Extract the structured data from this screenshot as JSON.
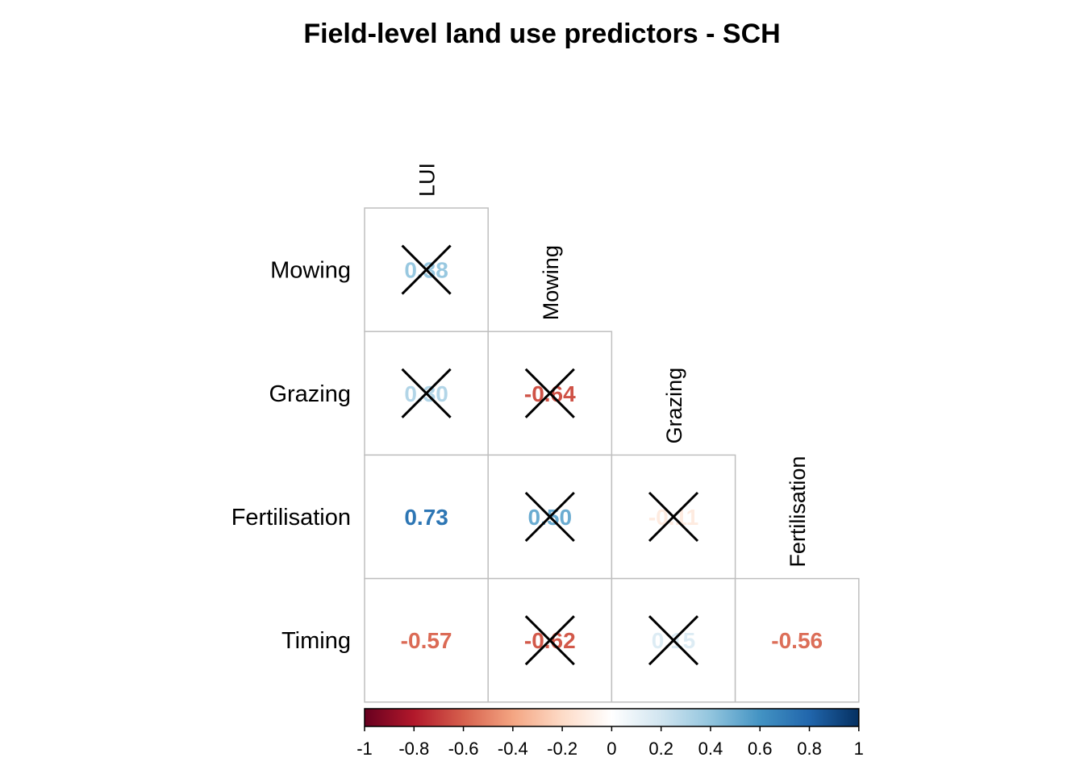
{
  "chart_data": {
    "type": "heatmap",
    "title": "Field-level land use predictors - SCH",
    "variables": [
      "LUI",
      "Mowing",
      "Grazing",
      "Fertilisation",
      "Timing"
    ],
    "cells": [
      {
        "row": "Mowing",
        "col": "LUI",
        "value": 0.38,
        "label": "0.38",
        "crossed": true
      },
      {
        "row": "Grazing",
        "col": "LUI",
        "value": 0.3,
        "label": "0.30",
        "crossed": true
      },
      {
        "row": "Grazing",
        "col": "Mowing",
        "value": -0.64,
        "label": "-0.64",
        "crossed": true
      },
      {
        "row": "Fertilisation",
        "col": "LUI",
        "value": 0.73,
        "label": "0.73",
        "crossed": false
      },
      {
        "row": "Fertilisation",
        "col": "Mowing",
        "value": 0.5,
        "label": "0.50",
        "crossed": true
      },
      {
        "row": "Fertilisation",
        "col": "Grazing",
        "value": -0.11,
        "label": "-0.11",
        "crossed": true
      },
      {
        "row": "Timing",
        "col": "LUI",
        "value": -0.57,
        "label": "-0.57",
        "crossed": false
      },
      {
        "row": "Timing",
        "col": "Mowing",
        "value": -0.62,
        "label": "-0.62",
        "crossed": true
      },
      {
        "row": "Timing",
        "col": "Grazing",
        "value": 0.15,
        "label": "0.15",
        "crossed": true
      },
      {
        "row": "Timing",
        "col": "Fertilisation",
        "value": -0.56,
        "label": "-0.56",
        "crossed": false
      }
    ],
    "colorbar": {
      "range": [
        -1,
        1
      ],
      "ticks": [
        "-1",
        "-0.8",
        "-0.6",
        "-0.4",
        "-0.2",
        "0",
        "0.2",
        "0.4",
        "0.6",
        "0.8",
        "1"
      ],
      "stops": [
        "#67001F",
        "#B2182B",
        "#D6604D",
        "#F4A582",
        "#FDDBC7",
        "#FFFFFF",
        "#D1E5F0",
        "#92C5DE",
        "#4393C3",
        "#2166AC",
        "#053061"
      ]
    },
    "grid": true,
    "legend_position": "bottom"
  }
}
